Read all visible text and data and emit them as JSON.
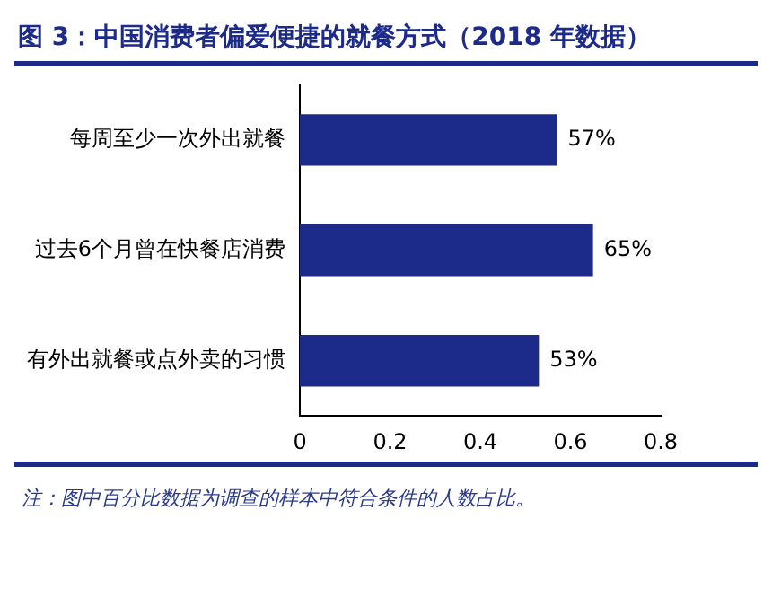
{
  "chart_data": {
    "type": "bar",
    "orientation": "horizontal",
    "title": "图 3：中国消费者偏爱便捷的就餐方式（2018 年数据）",
    "categories": [
      "每周至少一次外出就餐",
      "过去6个月曾在快餐店消费",
      "有外出就餐或点外卖的习惯"
    ],
    "values": [
      0.57,
      0.65,
      0.53
    ],
    "value_labels": [
      "57%",
      "65%",
      "53%"
    ],
    "color": "#1c2a8a",
    "xlim": [
      0,
      0.8
    ],
    "xticks": [
      0,
      0.2,
      0.4,
      0.6,
      0.8
    ],
    "grid": false,
    "legend": false,
    "annotations": [
      "注：图中百分比数据为调查的样本中符合条件的人数占比。"
    ]
  }
}
